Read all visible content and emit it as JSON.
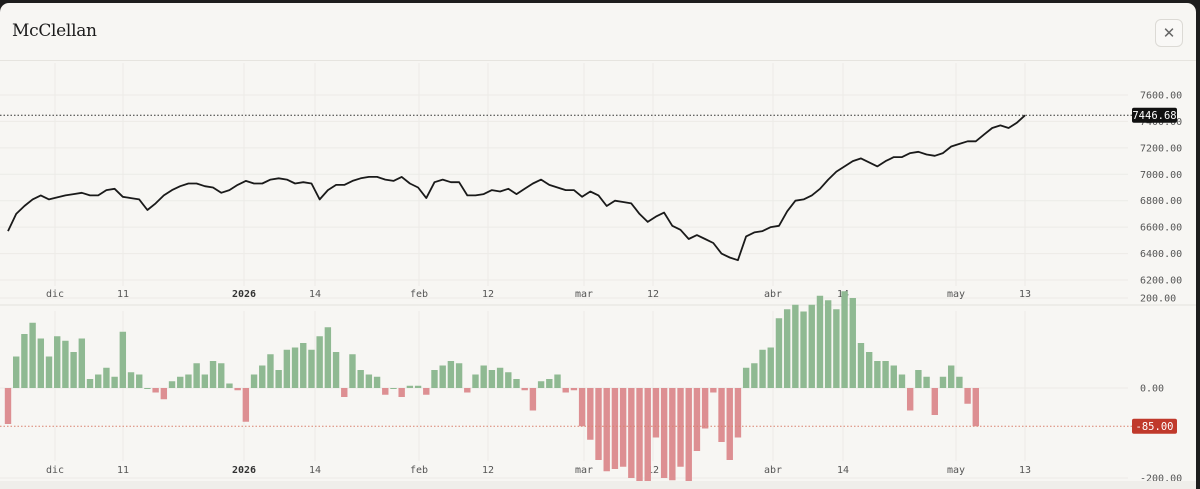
{
  "window": {
    "title": "McClellan",
    "close_icon": "close-icon"
  },
  "colors": {
    "line": "#1a1a1a",
    "positive": "#8fb992",
    "negative": "#dd8f92",
    "last_badge": "#111111",
    "neg_badge": "#c0392b"
  },
  "chart_data": [
    {
      "type": "line",
      "title": "",
      "ylim": [
        6200,
        7600
      ],
      "y_ticks": [
        "7600.00",
        "7400.00",
        "7200.00",
        "7000.00",
        "6800.00",
        "6600.00",
        "6400.00",
        "6200.00"
      ],
      "y_tick_values": [
        7600,
        7400,
        7200,
        7000,
        6800,
        6600,
        6400,
        6200
      ],
      "x_ticks": [
        "dic",
        "11",
        "2026",
        "14",
        "feb",
        "12",
        "mar",
        "12",
        "abr",
        "14",
        "may",
        "13"
      ],
      "last_value": 7446.68,
      "last_label": "7446.68",
      "series": [
        {
          "values": [
            6570,
            6700,
            6760,
            6810,
            6840,
            6810,
            6825,
            6840,
            6850,
            6860,
            6840,
            6840,
            6880,
            6890,
            6830,
            6820,
            6810,
            6730,
            6780,
            6840,
            6880,
            6910,
            6930,
            6930,
            6910,
            6900,
            6860,
            6880,
            6920,
            6950,
            6930,
            6930,
            6960,
            6970,
            6960,
            6930,
            6940,
            6930,
            6810,
            6880,
            6920,
            6920,
            6950,
            6970,
            6980,
            6980,
            6960,
            6950,
            6980,
            6930,
            6900,
            6820,
            6940,
            6960,
            6940,
            6940,
            6840,
            6840,
            6850,
            6880,
            6870,
            6890,
            6850,
            6890,
            6930,
            6960,
            6920,
            6900,
            6880,
            6880,
            6830,
            6870,
            6840,
            6760,
            6800,
            6790,
            6780,
            6700,
            6640,
            6680,
            6710,
            6610,
            6580,
            6510,
            6540,
            6510,
            6480,
            6400,
            6370,
            6350,
            6530,
            6560,
            6570,
            6600,
            6610,
            6720,
            6800,
            6810,
            6840,
            6890,
            6960,
            7020,
            7060,
            7100,
            7120,
            7090,
            7060,
            7100,
            7130,
            7130,
            7160,
            7170,
            7150,
            7140,
            7160,
            7210,
            7230,
            7250,
            7250,
            7300,
            7350,
            7370,
            7350,
            7390,
            7446.68
          ]
        }
      ]
    },
    {
      "type": "bar",
      "title": "",
      "ylim": [
        -250,
        250
      ],
      "y_ticks": [
        "200.00",
        "0.00",
        "-200.00"
      ],
      "y_tick_values": [
        200,
        0,
        -200
      ],
      "x_ticks": [
        "dic",
        "11",
        "2026",
        "14",
        "feb",
        "12",
        "mar",
        "12",
        "abr",
        "14",
        "may",
        "13"
      ],
      "last_value": -85,
      "last_label": "-85.00",
      "values": [
        -80,
        70,
        120,
        145,
        110,
        70,
        115,
        105,
        80,
        110,
        20,
        30,
        45,
        25,
        125,
        35,
        30,
        0,
        -10,
        -25,
        15,
        25,
        30,
        55,
        30,
        60,
        55,
        10,
        -5,
        -75,
        30,
        50,
        75,
        40,
        85,
        90,
        100,
        85,
        115,
        135,
        80,
        -20,
        75,
        40,
        30,
        25,
        -15,
        0,
        -20,
        5,
        5,
        -15,
        40,
        50,
        60,
        55,
        -10,
        30,
        50,
        40,
        45,
        35,
        20,
        -5,
        -50,
        15,
        20,
        30,
        -10,
        -5,
        -85,
        -115,
        -160,
        -185,
        -180,
        -175,
        -200,
        -250,
        -250,
        -110,
        -200,
        -205,
        -175,
        -240,
        -140,
        -90,
        -10,
        -120,
        -160,
        -110,
        45,
        55,
        85,
        90,
        155,
        175,
        185,
        170,
        185,
        205,
        195,
        175,
        215,
        200,
        100,
        80,
        60,
        60,
        50,
        30,
        -50,
        40,
        25,
        -60,
        25,
        50,
        25,
        -35,
        -85
      ]
    }
  ]
}
